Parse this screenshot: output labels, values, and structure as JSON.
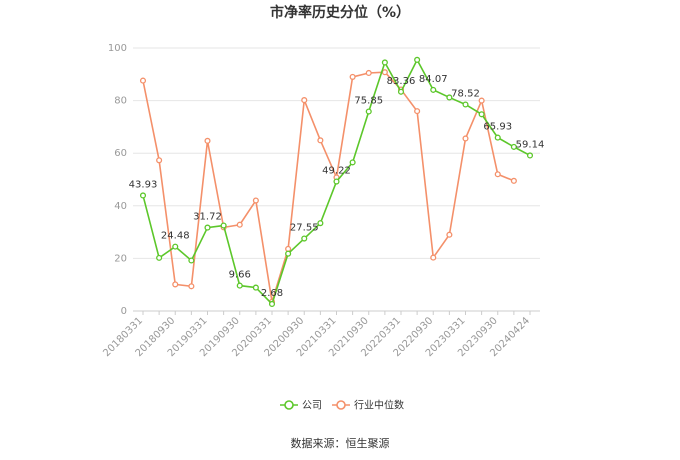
{
  "chart_data": {
    "type": "line",
    "title": "市净率历史分位（%）",
    "source": "数据来源：恒生聚源",
    "x": [
      "20180331",
      "20180630",
      "20180930",
      "20181231",
      "20190331",
      "20190630",
      "20190930",
      "20191231",
      "20200331",
      "20200630",
      "20200930",
      "20201231",
      "20210331",
      "20210630",
      "20210930",
      "20211231",
      "20220331",
      "20220630",
      "20220930",
      "20221231",
      "20230331",
      "20230630",
      "20230930",
      "20231231",
      "20240424"
    ],
    "x_tick_labels": [
      "20180331",
      "20180930",
      "20190331",
      "20190930",
      "20200331",
      "20200930",
      "20210331",
      "20210930",
      "20220331",
      "20220930",
      "20230331",
      "20230930",
      "20240424"
    ],
    "ylim": [
      0,
      100
    ],
    "y_ticks": [
      0,
      20,
      40,
      60,
      80,
      100
    ],
    "series": [
      {
        "name": "公司",
        "color": "#5cc72a",
        "values": [
          43.93,
          20.2,
          24.48,
          19.2,
          31.72,
          32.5,
          9.66,
          8.9,
          2.68,
          21.8,
          27.55,
          33.4,
          49.22,
          56.5,
          75.85,
          94.5,
          83.36,
          95.5,
          84.07,
          81.2,
          78.52,
          74.8,
          65.93,
          62.4,
          59.14
        ],
        "labels": {
          "0": "43.93",
          "2": "24.48",
          "4": "31.72",
          "6": "9.66",
          "8": "2.68",
          "10": "27.55",
          "12": "49.22",
          "14": "75.85",
          "16": "83.36",
          "18": "84.07",
          "20": "78.52",
          "22": "65.93",
          "24": "59.14"
        }
      },
      {
        "name": "行业中位数",
        "color": "#f4906a",
        "values": [
          87.6,
          57.3,
          10.1,
          9.4,
          64.7,
          31.8,
          32.8,
          42.0,
          3.5,
          23.6,
          80.2,
          64.9,
          50.8,
          89.0,
          90.5,
          90.8,
          84.2,
          76.0,
          20.3,
          29.0,
          65.6,
          80.0,
          52.0,
          49.5,
          null
        ]
      }
    ],
    "legend_position": "bottom",
    "grid": true
  }
}
